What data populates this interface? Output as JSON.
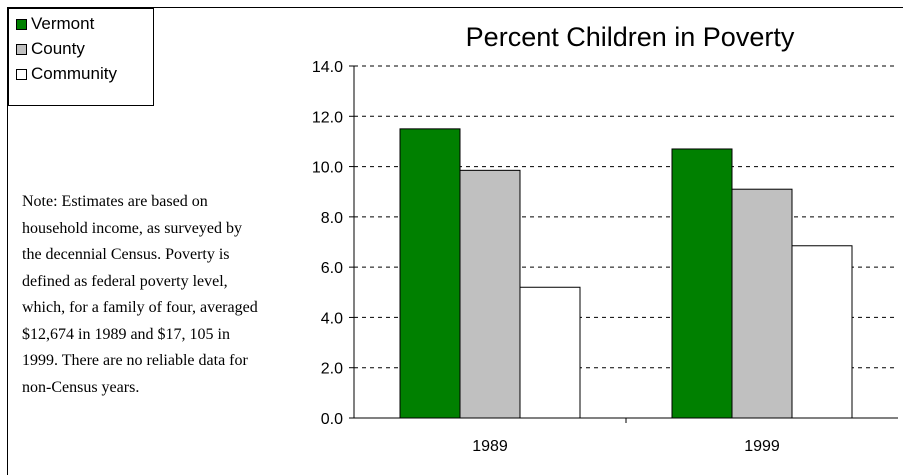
{
  "chart_data": {
    "type": "bar",
    "title": "Percent Children in Poverty",
    "xlabel": "",
    "ylabel": "",
    "categories": [
      "1989",
      "1999"
    ],
    "series": [
      {
        "name": "Vermont",
        "color": "#008000",
        "values": [
          11.5,
          10.7
        ]
      },
      {
        "name": "County",
        "color": "#c0c0c0",
        "values": [
          9.85,
          9.1
        ]
      },
      {
        "name": "Community",
        "color": "#ffffff",
        "values": [
          5.2,
          6.85
        ]
      }
    ],
    "ylim": [
      0,
      14
    ],
    "yticks": [
      "0.0",
      "2.0",
      "4.0",
      "6.0",
      "8.0",
      "10.0",
      "12.0",
      "14.0"
    ],
    "grid": "dashed horizontal",
    "legend_position": "top-left",
    "note": "Note: Estimates are based on household income, as surveyed by the decennial Census.  Poverty is defined as federal poverty level, which, for a family of four, averaged $12,674 in 1989 and $17, 105 in 1999.  There are no reliable data for non-Census years."
  },
  "note_lines": [
    "Note: Estimates are based on",
    "household income, as surveyed by",
    "the decennial Census.  Poverty is",
    "defined as federal poverty level,",
    "which, for a family of four, averaged",
    "$12,674 in 1989 and $17, 105 in",
    "1999.  There are no reliable data for",
    "non-Census years."
  ]
}
